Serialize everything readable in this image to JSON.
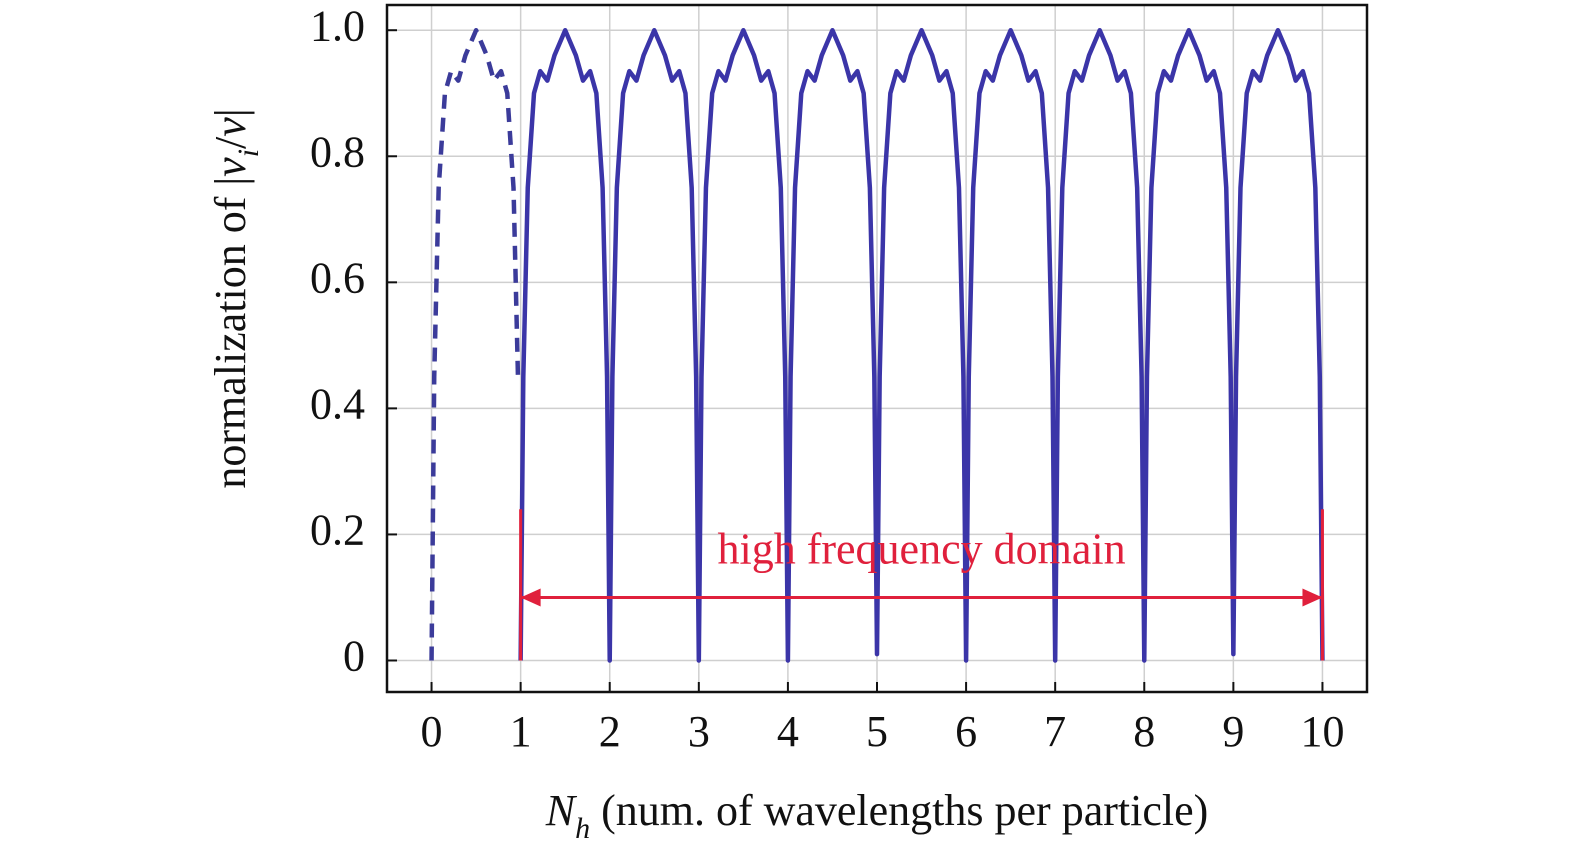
{
  "chart_data": {
    "type": "line",
    "ylabel": [
      "normalization of |",
      "v",
      "i",
      "/",
      "v",
      "|"
    ],
    "xlabel": [
      "N",
      "h",
      " (num. of wavelengths per particle)"
    ],
    "xlim": [
      -0.5,
      10.5
    ],
    "ylim": [
      -0.05,
      1.04
    ],
    "xticks": [
      0,
      1,
      2,
      3,
      4,
      5,
      6,
      7,
      8,
      9,
      10
    ],
    "yticks": [
      0,
      0.2,
      0.4,
      0.6,
      0.8,
      {
        "value": 1,
        "label": "1.0"
      }
    ],
    "grid": true,
    "series": [
      {
        "color": "#3b3b9a",
        "dashed": true,
        "x": [
          0,
          0.03,
          0.08,
          0.15,
          0.22,
          0.3,
          0.38,
          0.5,
          0.62,
          0.7,
          0.78,
          0.85,
          0.92,
          0.97
        ],
        "values": [
          0,
          0.45,
          0.75,
          0.9,
          0.935,
          0.92,
          0.96,
          1,
          0.96,
          0.92,
          0.935,
          0.9,
          0.75,
          0.45
        ]
      },
      {
        "color": "#3b35a8",
        "dashed": false,
        "x": [
          1,
          1.03,
          1.08,
          1.15,
          1.22,
          1.3,
          1.38,
          1.5,
          1.62,
          1.7,
          1.78,
          1.85,
          1.92,
          1.97,
          2,
          2.03,
          2.08,
          2.15,
          2.22,
          2.3,
          2.38,
          2.5,
          2.62,
          2.7,
          2.78,
          2.85,
          2.92,
          2.97,
          3,
          3.03,
          3.08,
          3.15,
          3.22,
          3.3,
          3.38,
          3.5,
          3.62,
          3.7,
          3.78,
          3.85,
          3.92,
          3.97,
          4,
          4.03,
          4.08,
          4.15,
          4.22,
          4.3,
          4.38,
          4.5,
          4.62,
          4.7,
          4.78,
          4.85,
          4.92,
          4.97,
          5,
          5.03,
          5.08,
          5.15,
          5.22,
          5.3,
          5.38,
          5.5,
          5.62,
          5.7,
          5.78,
          5.85,
          5.92,
          5.97,
          6,
          6.03,
          6.08,
          6.15,
          6.22,
          6.3,
          6.38,
          6.5,
          6.62,
          6.7,
          6.78,
          6.85,
          6.92,
          6.97,
          7,
          7.03,
          7.08,
          7.15,
          7.22,
          7.3,
          7.38,
          7.5,
          7.62,
          7.7,
          7.78,
          7.85,
          7.92,
          7.97,
          8,
          8.03,
          8.08,
          8.15,
          8.22,
          8.3,
          8.38,
          8.5,
          8.62,
          8.7,
          8.78,
          8.85,
          8.92,
          8.97,
          9,
          9.03,
          9.08,
          9.15,
          9.22,
          9.3,
          9.38,
          9.5,
          9.62,
          9.7,
          9.78,
          9.85,
          9.92,
          9.97,
          10
        ],
        "values": [
          0,
          0.45,
          0.75,
          0.9,
          0.935,
          0.92,
          0.96,
          1,
          0.96,
          0.92,
          0.935,
          0.9,
          0.75,
          0.45,
          0,
          0.45,
          0.75,
          0.9,
          0.935,
          0.92,
          0.96,
          1,
          0.96,
          0.92,
          0.935,
          0.9,
          0.75,
          0.45,
          0,
          0.45,
          0.75,
          0.9,
          0.935,
          0.92,
          0.96,
          1,
          0.96,
          0.92,
          0.935,
          0.9,
          0.75,
          0.45,
          0,
          0.45,
          0.75,
          0.9,
          0.935,
          0.92,
          0.96,
          1,
          0.96,
          0.92,
          0.935,
          0.9,
          0.75,
          0.45,
          0.01,
          0.45,
          0.75,
          0.9,
          0.935,
          0.92,
          0.96,
          1,
          0.96,
          0.92,
          0.935,
          0.9,
          0.75,
          0.45,
          0,
          0.45,
          0.75,
          0.9,
          0.935,
          0.92,
          0.96,
          1,
          0.96,
          0.92,
          0.935,
          0.9,
          0.75,
          0.45,
          0,
          0.45,
          0.75,
          0.9,
          0.935,
          0.92,
          0.96,
          1,
          0.96,
          0.92,
          0.935,
          0.9,
          0.75,
          0.45,
          0,
          0.45,
          0.75,
          0.9,
          0.935,
          0.92,
          0.96,
          1,
          0.96,
          0.92,
          0.935,
          0.9,
          0.75,
          0.45,
          0.01,
          0.45,
          0.75,
          0.9,
          0.935,
          0.92,
          0.96,
          1,
          0.96,
          0.92,
          0.935,
          0.9,
          0.75,
          0.45,
          0
        ]
      }
    ],
    "annotation": {
      "text": "high frequency domain",
      "color": "#e0203c",
      "x": [
        1,
        10
      ],
      "y": 0.1,
      "bracket_top": 0.24
    }
  }
}
